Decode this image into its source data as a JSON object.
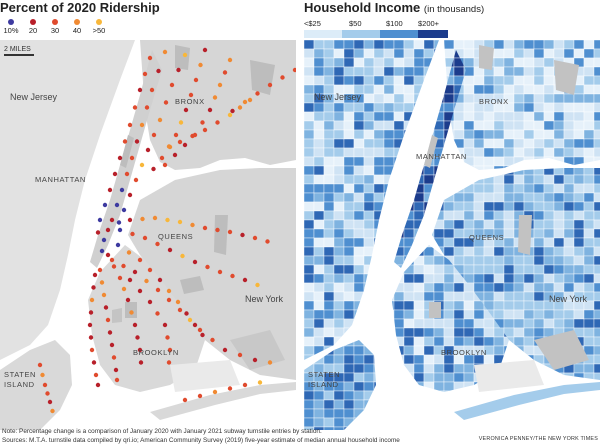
{
  "left_panel": {
    "title": "Percent of 2020 Ridership",
    "legend": [
      {
        "label": "10%",
        "color": "#3d3aa0"
      },
      {
        "label": "20",
        "color": "#b8202a"
      },
      {
        "label": "30",
        "color": "#e04b2e"
      },
      {
        "label": "40",
        "color": "#f08a33"
      },
      {
        "label": ">50",
        "color": "#f8b73a"
      }
    ],
    "scale_label": "2 MILES",
    "places": {
      "new_jersey": "New Jersey",
      "bronx": "BRONX",
      "manhattan": "MANHATTAN",
      "queens": "QUEENS",
      "new_york": "New York",
      "brooklyn": "BROOKLYN",
      "staten_island": "STATEN\nISLAND"
    }
  },
  "right_panel": {
    "title": "Household Income",
    "title_note": "(in thousands)",
    "legend": [
      {
        "label": "<$25",
        "color": "#dcecf8"
      },
      {
        "label": "$50",
        "color": "#a4cceb"
      },
      {
        "label": "$100",
        "color": "#4f8fd0"
      },
      {
        "label": "$200+",
        "color": "#1c3c8c"
      }
    ],
    "places": {
      "new_jersey": "New Jersey",
      "bronx": "BRONX",
      "manhattan": "MANHATTAN",
      "queens": "QUEENS",
      "new_york": "New York",
      "brooklyn": "BROOKLYN",
      "staten_island": "STATEN\nISLAND"
    }
  },
  "footer": {
    "note": "Note: Percentage change is a comparison of January 2020 with January 2021 subway turnstile entries by station.",
    "sources": "Sources: M.T.A. turnstile data compiled by qri.io; American Community Survey (2019) five-year estimate of median annual household income",
    "credit": "VERONICA PENNEY/THE NEW YORK TIMES"
  },
  "colors": {
    "water": "#ffffff",
    "land_gray": "#d9d9d9",
    "land_light": "#ececec",
    "park_gray": "#c2c2c2"
  }
}
